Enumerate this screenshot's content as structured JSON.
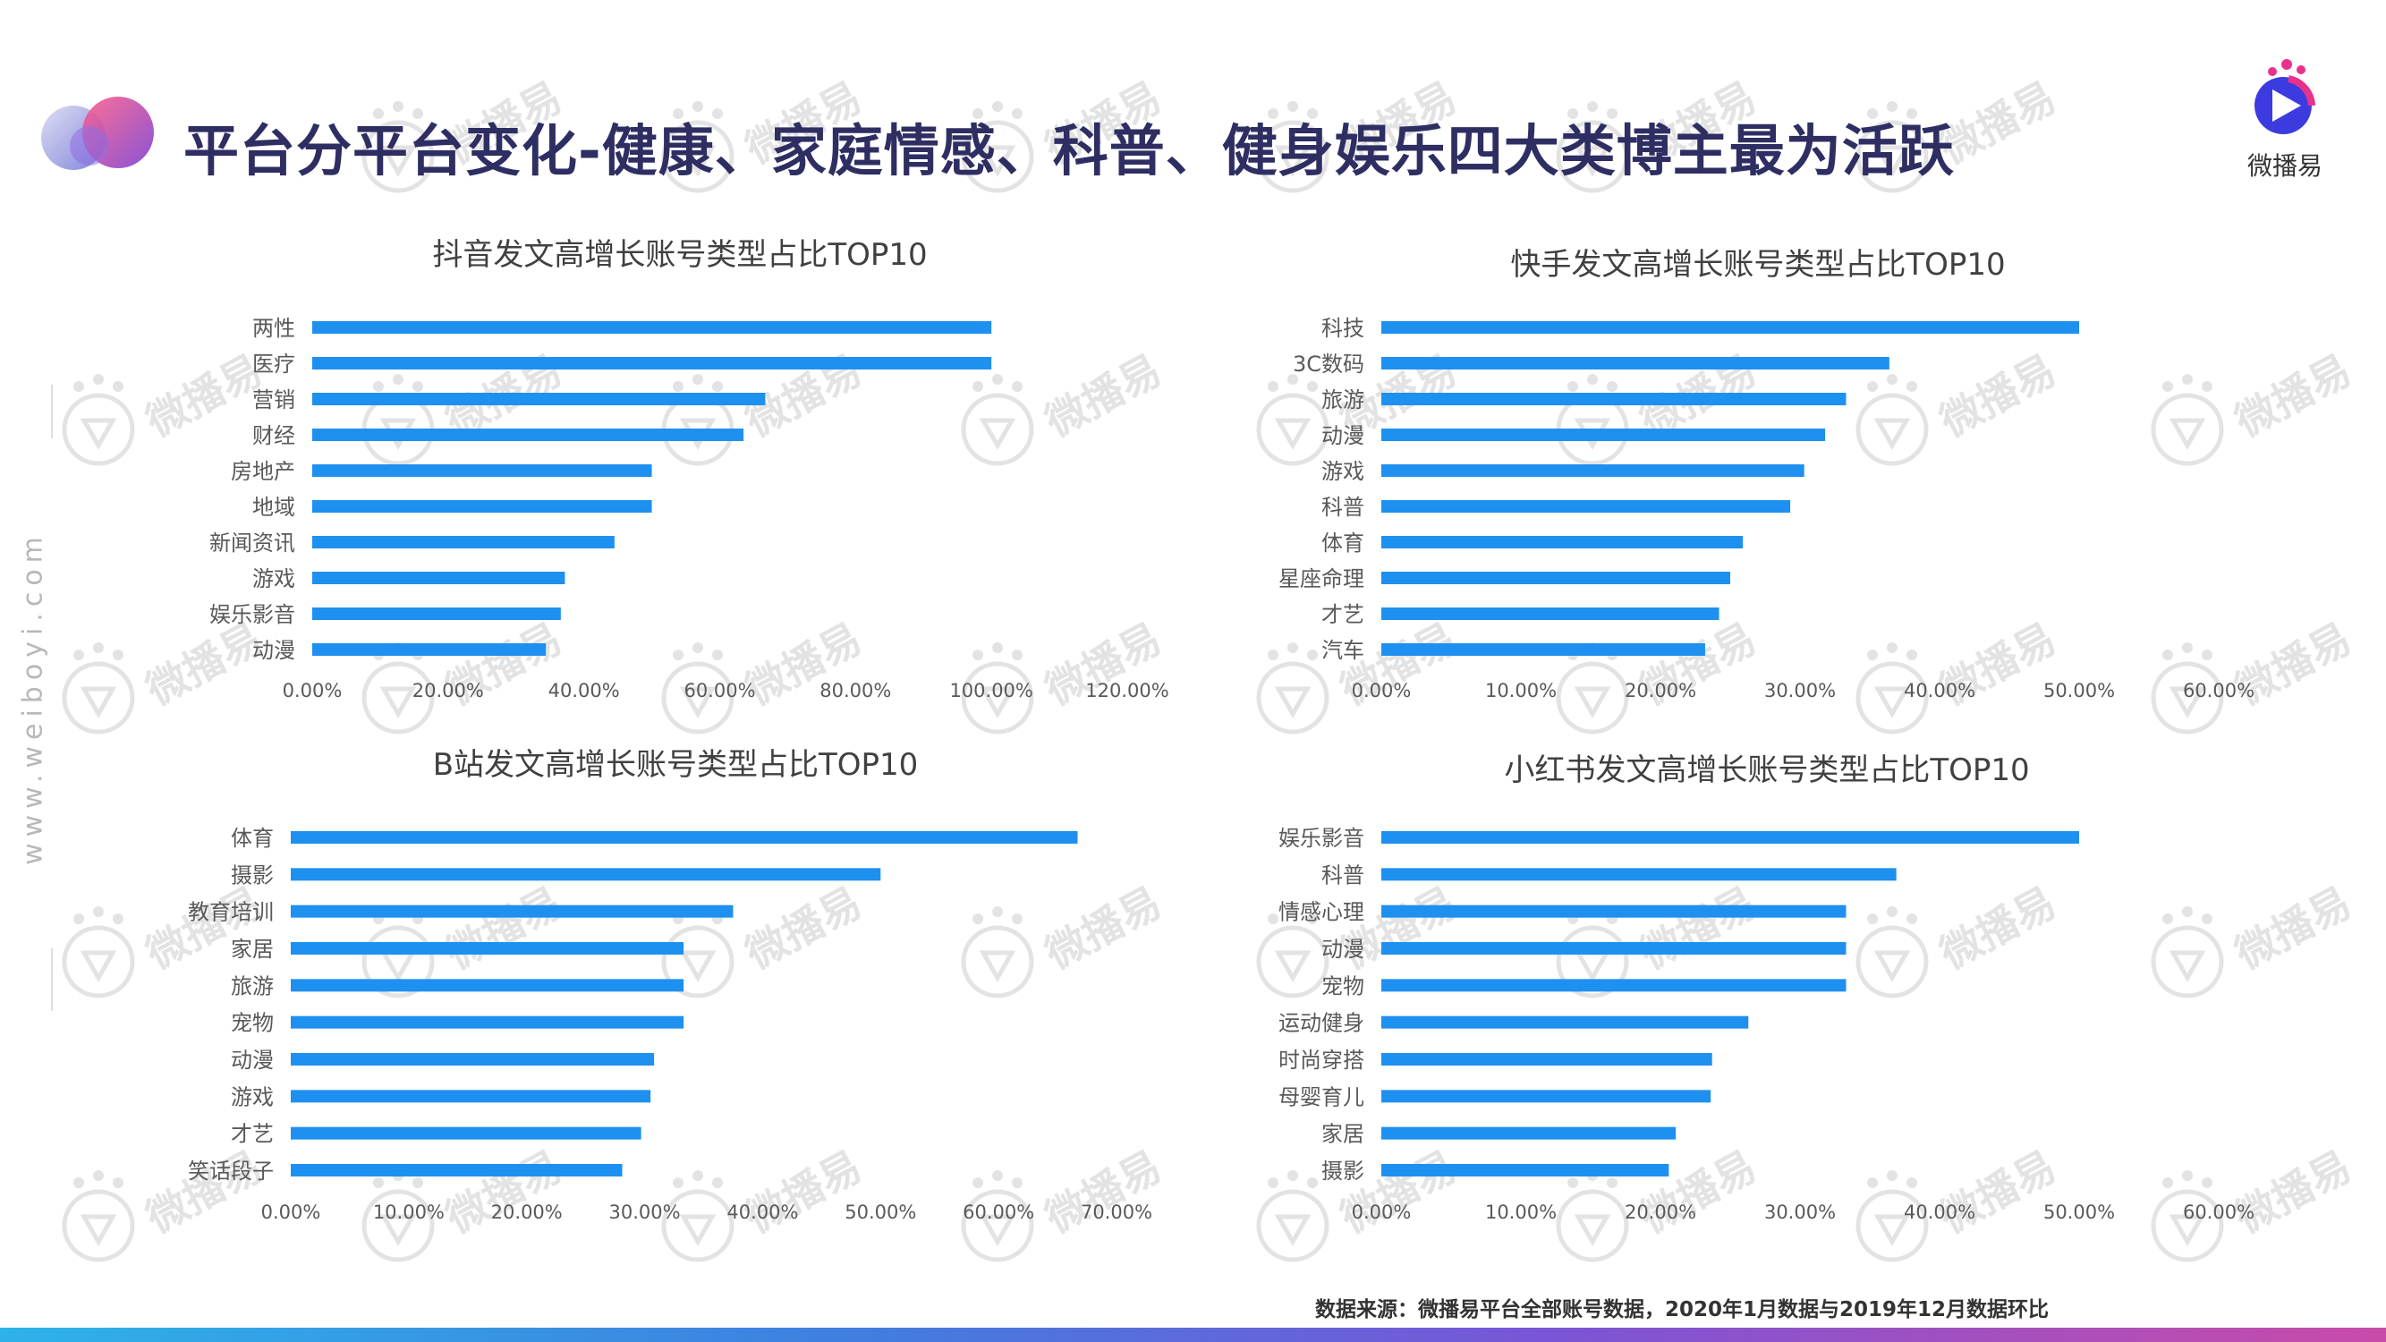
{
  "page": {
    "title": "平台分平台变化-健康、家庭情感、科普、健身娱乐四大类博主最为活跃",
    "logo_text": "微播易",
    "side_url": "www.weiboyi.com",
    "source": "数据来源：微播易平台全部账号数据，2020年1月数据与2019年12月数据环比",
    "watermark_text": "微播易",
    "colors": {
      "bar": "#1e90f0",
      "title": "#2e2e63",
      "axis_text": "#595959"
    }
  },
  "chart_data": [
    {
      "type": "bar",
      "orientation": "horizontal",
      "title": "抖音发文高增长账号类型占比TOP10",
      "categories": [
        "两性",
        "医疗",
        "营销",
        "财经",
        "房地产",
        "地域",
        "新闻资讯",
        "游戏",
        "娱乐影音",
        "动漫"
      ],
      "values": [
        100.0,
        100.0,
        66.7,
        63.5,
        50.0,
        50.0,
        44.5,
        37.2,
        36.6,
        34.4
      ],
      "xlim": [
        0,
        120
      ],
      "ticks": [
        "0.00%",
        "20.00%",
        "40.00%",
        "60.00%",
        "80.00%",
        "100.00%",
        "120.00%"
      ],
      "xlabel": "",
      "ylabel": ""
    },
    {
      "type": "bar",
      "orientation": "horizontal",
      "title": "快手发文高增长账号类型占比TOP10",
      "categories": [
        "科技",
        "3C数码",
        "旅游",
        "动漫",
        "游戏",
        "科普",
        "体育",
        "星座命理",
        "才艺",
        "汽车"
      ],
      "values": [
        50.0,
        36.4,
        33.3,
        31.8,
        30.3,
        29.3,
        25.9,
        25.0,
        24.2,
        23.2
      ],
      "xlim": [
        0,
        60
      ],
      "ticks": [
        "0.00%",
        "10.00%",
        "20.00%",
        "30.00%",
        "40.00%",
        "50.00%",
        "60.00%"
      ],
      "xlabel": "",
      "ylabel": ""
    },
    {
      "type": "bar",
      "orientation": "horizontal",
      "title": "B站发文高增长账号类型占比TOP10",
      "categories": [
        "体育",
        "摄影",
        "教育培训",
        "家居",
        "旅游",
        "宠物",
        "动漫",
        "游戏",
        "才艺",
        "笑话段子"
      ],
      "values": [
        66.7,
        50.0,
        37.5,
        33.3,
        33.3,
        33.3,
        30.8,
        30.5,
        29.7,
        28.1
      ],
      "xlim": [
        0,
        70
      ],
      "ticks": [
        "0.00%",
        "10.00%",
        "20.00%",
        "30.00%",
        "40.00%",
        "50.00%",
        "60.00%",
        "70.00%"
      ],
      "xlabel": "",
      "ylabel": ""
    },
    {
      "type": "bar",
      "orientation": "horizontal",
      "title": "小红书发文高增长账号类型占比TOP10",
      "categories": [
        "娱乐影音",
        "科普",
        "情感心理",
        "动漫",
        "宠物",
        "运动健身",
        "时尚穿搭",
        "母婴育儿",
        "家居",
        "摄影"
      ],
      "values": [
        50.0,
        36.9,
        33.3,
        33.3,
        33.3,
        26.3,
        23.7,
        23.6,
        21.1,
        20.6
      ],
      "xlim": [
        0,
        60
      ],
      "ticks": [
        "0.00%",
        "10.00%",
        "20.00%",
        "30.00%",
        "40.00%",
        "50.00%",
        "60.00%"
      ],
      "xlabel": "",
      "ylabel": ""
    }
  ]
}
